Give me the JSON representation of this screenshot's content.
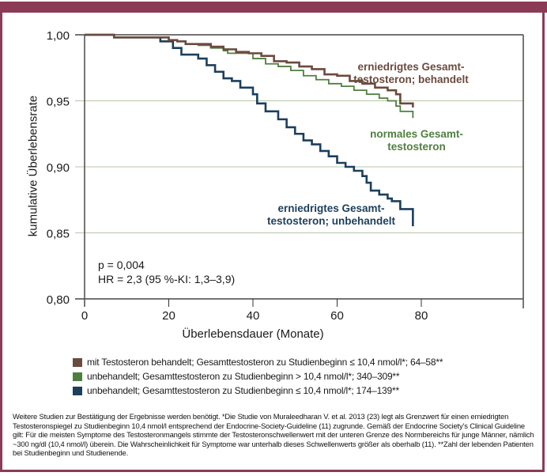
{
  "frame": {
    "accent_color": "#8c3b57"
  },
  "chart_data": {
    "type": "line",
    "subtype": "kaplan-meier step",
    "xlabel": "Überlebensdauer (Monate)",
    "ylabel": "kumulative Überlebensrate",
    "xlim": [
      0,
      98
    ],
    "ylim": [
      0.8,
      1.0
    ],
    "x_ticks": [
      0,
      20,
      40,
      60,
      80
    ],
    "x_tick_labels": [
      "0",
      "20",
      "40",
      "60",
      "80"
    ],
    "y_ticks": [
      0.8,
      0.85,
      0.9,
      0.95,
      1.0
    ],
    "y_tick_labels": [
      "0,80",
      "0,85",
      "0,90",
      "0,95",
      "1,00"
    ],
    "grid": "horizontal",
    "series": [
      {
        "name": "mit Testosteron behandelt; Gesamttestosteron zu Studienbeginn ≤10,4 nmol/l*; 64–58**",
        "annotation": [
          "erniedrigtes Gesamt-",
          "testosteron; behandelt"
        ],
        "color": "#6b4a3e",
        "x": [
          0,
          7,
          7,
          18,
          20,
          22,
          24,
          27,
          30,
          33,
          36,
          39,
          42,
          45,
          48,
          51,
          54,
          57,
          60,
          63,
          66,
          69,
          72,
          74,
          75,
          78
        ],
        "y": [
          1.0,
          1.0,
          0.998,
          0.998,
          0.996,
          0.995,
          0.993,
          0.993,
          0.991,
          0.989,
          0.987,
          0.986,
          0.984,
          0.98,
          0.979,
          0.976,
          0.974,
          0.97,
          0.969,
          0.965,
          0.963,
          0.96,
          0.958,
          0.955,
          0.948,
          0.945
        ]
      },
      {
        "name": "unbehandelt; Gesamttestosteron zu Studienbeginn >10,4 nmol/l*; 340–309**",
        "annotation": [
          "normales Gesamt-",
          "testosteron"
        ],
        "color": "#4f7f3f",
        "x": [
          0,
          7,
          7,
          18,
          20,
          22,
          24,
          27,
          30,
          33,
          34,
          38,
          40,
          43,
          46,
          49,
          52,
          55,
          58,
          61,
          64,
          67,
          70,
          72,
          74,
          75,
          78
        ],
        "y": [
          1.0,
          1.0,
          0.998,
          0.998,
          0.996,
          0.995,
          0.993,
          0.992,
          0.99,
          0.988,
          0.986,
          0.986,
          0.982,
          0.978,
          0.976,
          0.973,
          0.969,
          0.966,
          0.963,
          0.961,
          0.958,
          0.955,
          0.952,
          0.95,
          0.946,
          0.942,
          0.937
        ]
      },
      {
        "name": "unbehandelt; Gesamttestosteron zu Studienbeginn ≤10,4 nmol/l*; 174–139**",
        "annotation": [
          "erniedrigtes Gesamt-",
          "testosteron; unbehandelt"
        ],
        "color": "#1c3f5c",
        "x": [
          0,
          7,
          7,
          18,
          18,
          21,
          23,
          27,
          29,
          31,
          33,
          35,
          37,
          40,
          41,
          43,
          46,
          48,
          50,
          52,
          54,
          56,
          58,
          60,
          62,
          64,
          66,
          67,
          68,
          70,
          72,
          73,
          75,
          78,
          78
        ],
        "y": [
          1.0,
          1.0,
          0.998,
          0.998,
          0.995,
          0.99,
          0.985,
          0.982,
          0.977,
          0.972,
          0.967,
          0.965,
          0.96,
          0.955,
          0.948,
          0.942,
          0.936,
          0.93,
          0.925,
          0.92,
          0.917,
          0.912,
          0.908,
          0.903,
          0.9,
          0.897,
          0.893,
          0.888,
          0.882,
          0.879,
          0.876,
          0.874,
          0.868,
          0.866,
          0.855
        ]
      }
    ],
    "stats": [
      "p = 0,004",
      "HR = 2,3 (95 %-KI: 1,3–3,9)"
    ],
    "legend_position": "bottom-left"
  },
  "legend": [
    {
      "label": "mit Testosteron behandelt; Gesamttestosteron zu Studienbeginn ≤ 10,4 nmol/l*; 64–58**",
      "color": "#6b4a3e"
    },
    {
      "label": "unbehandelt; Gesamttestosteron zu Studienbeginn > 10,4 nmol/l*; 340–309**",
      "color": "#4f7f3f"
    },
    {
      "label": "unbehandelt; Gesamttestosteron zu Studienbeginn ≤ 10,4 nmol/l*; 174–139**",
      "color": "#1c3f5c"
    }
  ],
  "footnote": "Weitere Studien zur Bestätigung der Ergebnisse werden benötigt. *Die Studie von Muraleedharan V. et al. 2013 (23) legt als Grenzwert für einen erniedrigten Testosteronspiegel zu Studienbeginn 10,4 nmol/l entsprechend der Endocrine-Society-Guideline (11) zugrunde. Gemäß der Endocrine Society’s Clinical Guideline gilt: Für die meisten Symptome des Testosteronmangels stimmte der Testosteronschwellenwert mit der unteren Grenze des Normbereichs für junge Männer, nämlich ~300 ng/dl (10,4 nmol/l) überein. Die Wahrscheinlichkeit für Symptome war unterhalb dieses Schwellenwerts größer als oberhalb (11). **Zahl der lebenden Patienten bei Studienbeginn und Studienende."
}
